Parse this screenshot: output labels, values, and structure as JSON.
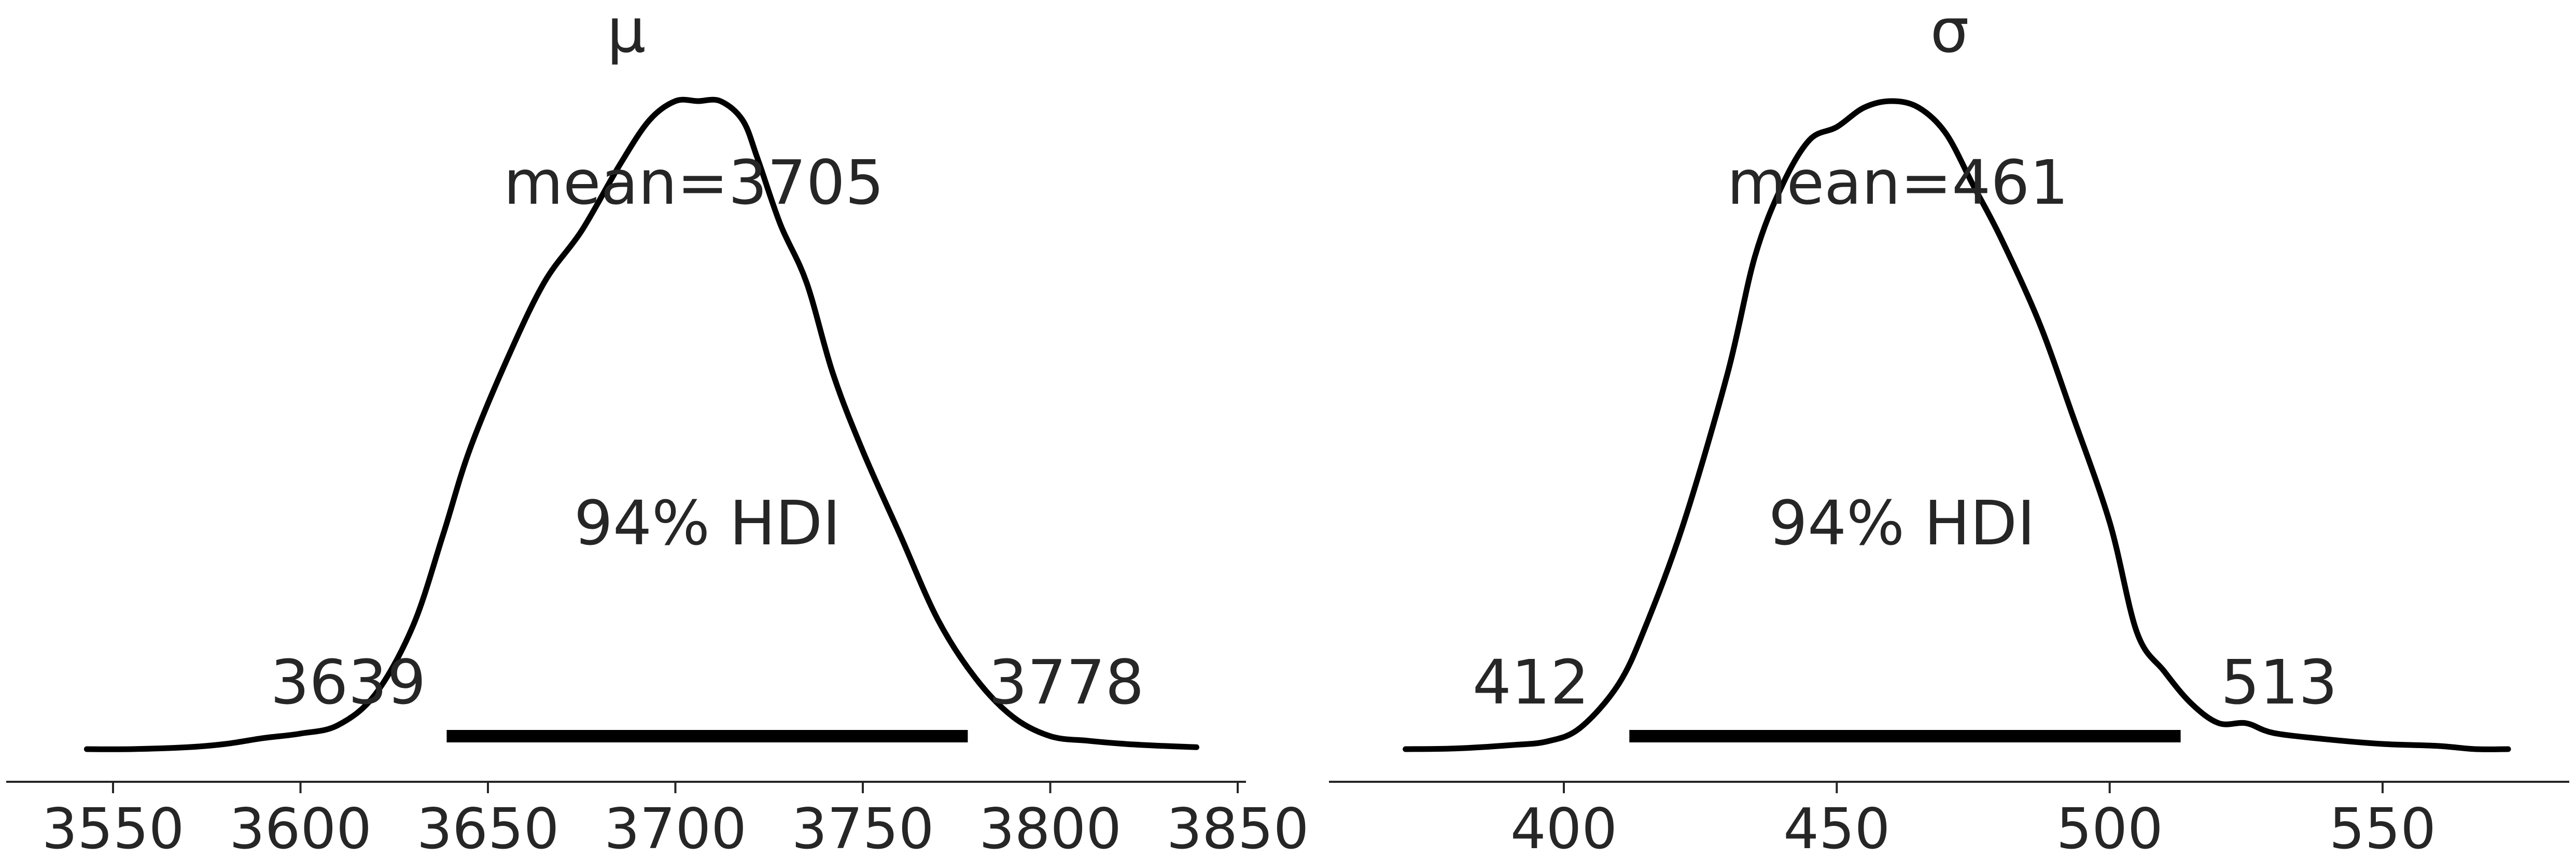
{
  "chart_data": [
    {
      "type": "area",
      "title": "μ",
      "xlabel": "",
      "ylabel": "",
      "xlim": [
        3530,
        3852
      ],
      "xticks": [
        3550,
        3600,
        3650,
        3700,
        3750,
        3800,
        3850
      ],
      "grid": false,
      "annotations": {
        "mean_label": "mean=3705",
        "hdi_label": "94% HDI",
        "hdi_low_label": "3639",
        "hdi_high_label": "3778"
      },
      "mean": 3705,
      "hdi": [
        3639,
        3778
      ],
      "density": {
        "x": [
          3543,
          3555,
          3570,
          3580,
          3590,
          3600,
          3610,
          3620,
          3630,
          3638,
          3645,
          3655,
          3665,
          3675,
          3685,
          3693,
          3700,
          3706,
          3712,
          3718,
          3722,
          3728,
          3735,
          3742,
          3750,
          3760,
          3770,
          3780,
          3790,
          3800,
          3810,
          3820,
          3830,
          3839
        ],
        "y": [
          0.0,
          0.0,
          0.003,
          0.008,
          0.017,
          0.024,
          0.037,
          0.085,
          0.19,
          0.33,
          0.46,
          0.6,
          0.72,
          0.8,
          0.9,
          0.97,
          1.0,
          1.0,
          1.0,
          0.97,
          0.91,
          0.81,
          0.72,
          0.58,
          0.46,
          0.33,
          0.2,
          0.11,
          0.05,
          0.02,
          0.013,
          0.008,
          0.005,
          0.003
        ]
      }
    },
    {
      "type": "area",
      "title": "σ",
      "xlabel": "",
      "ylabel": "",
      "xlim": [
        363,
        580
      ],
      "xticks": [
        400,
        450,
        500,
        550
      ],
      "grid": false,
      "annotations": {
        "mean_label": "mean=461",
        "hdi_label": "94% HDI",
        "hdi_low_label": "412",
        "hdi_high_label": "513"
      },
      "mean": 461,
      "hdi": [
        412,
        513
      ],
      "density": {
        "x": [
          371,
          380,
          390,
          397,
          403,
          410,
          415,
          422,
          430,
          435,
          440,
          445,
          450,
          455,
          460,
          465,
          470,
          475,
          480,
          487,
          493,
          500,
          505,
          510,
          515,
          520,
          525,
          530,
          540,
          550,
          560,
          567,
          573
        ],
        "y": [
          0.0,
          0.001,
          0.006,
          0.012,
          0.033,
          0.1,
          0.19,
          0.35,
          0.58,
          0.76,
          0.87,
          0.94,
          0.96,
          0.99,
          1.0,
          0.99,
          0.95,
          0.87,
          0.79,
          0.66,
          0.52,
          0.35,
          0.18,
          0.12,
          0.07,
          0.04,
          0.04,
          0.025,
          0.015,
          0.008,
          0.005,
          0.0,
          0.0
        ]
      }
    }
  ]
}
